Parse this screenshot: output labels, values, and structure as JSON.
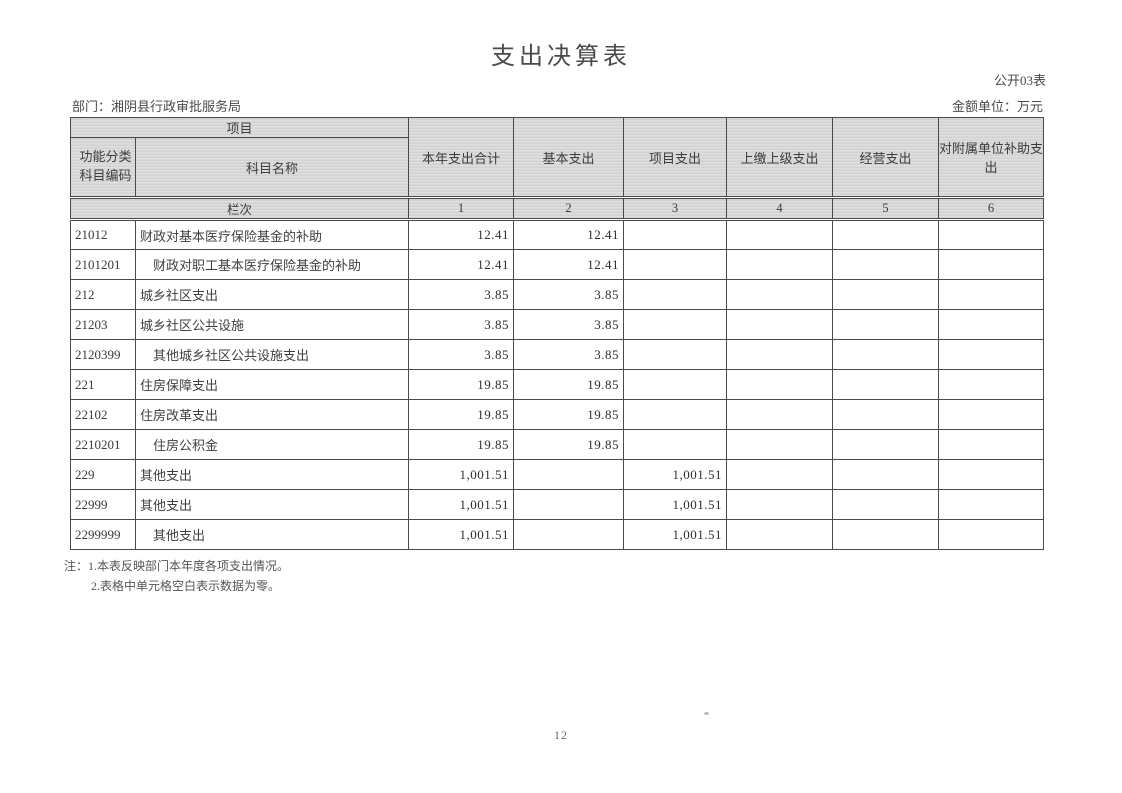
{
  "page": {
    "title": "支出决算表",
    "form_code": "公开03表",
    "department": "部门：湘阴县行政审批服务局",
    "unit": "金额单位：万元",
    "page_number": "12"
  },
  "table": {
    "header": {
      "project_group": "项目",
      "code_line1": "功能分类",
      "code_line2": "科目编码",
      "subject_name": "科目名称",
      "columns": [
        "本年支出合计",
        "基本支出",
        "项目支出",
        "上缴上级支出",
        "经营支出",
        "对附属单位补助支出"
      ],
      "lanci_label": "栏次",
      "column_numbers": [
        "1",
        "2",
        "3",
        "4",
        "5",
        "6"
      ]
    },
    "rows": [
      {
        "code": "21012",
        "name": "财政对基本医疗保险基金的补助",
        "indent": false,
        "total": "12.41",
        "basic": "12.41",
        "project": "",
        "upper": "",
        "operating": "",
        "subsidy": ""
      },
      {
        "code": "2101201",
        "name": "财政对职工基本医疗保险基金的补助",
        "indent": true,
        "total": "12.41",
        "basic": "12.41",
        "project": "",
        "upper": "",
        "operating": "",
        "subsidy": ""
      },
      {
        "code": "212",
        "name": "城乡社区支出",
        "indent": false,
        "total": "3.85",
        "basic": "3.85",
        "project": "",
        "upper": "",
        "operating": "",
        "subsidy": ""
      },
      {
        "code": "21203",
        "name": "城乡社区公共设施",
        "indent": false,
        "total": "3.85",
        "basic": "3.85",
        "project": "",
        "upper": "",
        "operating": "",
        "subsidy": ""
      },
      {
        "code": "2120399",
        "name": "其他城乡社区公共设施支出",
        "indent": true,
        "total": "3.85",
        "basic": "3.85",
        "project": "",
        "upper": "",
        "operating": "",
        "subsidy": ""
      },
      {
        "code": "221",
        "name": "住房保障支出",
        "indent": false,
        "total": "19.85",
        "basic": "19.85",
        "project": "",
        "upper": "",
        "operating": "",
        "subsidy": ""
      },
      {
        "code": "22102",
        "name": "住房改革支出",
        "indent": false,
        "total": "19.85",
        "basic": "19.85",
        "project": "",
        "upper": "",
        "operating": "",
        "subsidy": ""
      },
      {
        "code": "2210201",
        "name": "住房公积金",
        "indent": true,
        "total": "19.85",
        "basic": "19.85",
        "project": "",
        "upper": "",
        "operating": "",
        "subsidy": ""
      },
      {
        "code": "229",
        "name": "其他支出",
        "indent": false,
        "total": "1,001.51",
        "basic": "",
        "project": "1,001.51",
        "upper": "",
        "operating": "",
        "subsidy": ""
      },
      {
        "code": "22999",
        "name": "其他支出",
        "indent": false,
        "total": "1,001.51",
        "basic": "",
        "project": "1,001.51",
        "upper": "",
        "operating": "",
        "subsidy": ""
      },
      {
        "code": "2299999",
        "name": "其他支出",
        "indent": true,
        "total": "1,001.51",
        "basic": "",
        "project": "1,001.51",
        "upper": "",
        "operating": "",
        "subsidy": ""
      }
    ]
  },
  "notes": {
    "line1": "注：1.本表反映部门本年度各项支出情况。",
    "line2": "2.表格中单元格空白表示数据为零。"
  }
}
